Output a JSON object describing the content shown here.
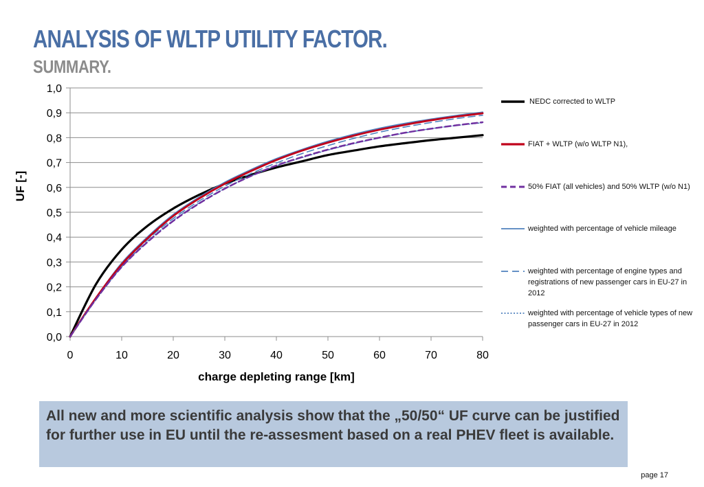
{
  "header": {
    "title": "ANALYSIS OF WLTP UTILITY FACTOR.",
    "subtitle": "SUMMARY."
  },
  "chart_data": {
    "type": "line",
    "xlabel": "charge depleting range [km]",
    "ylabel": "UF [-]",
    "xlim": [
      0,
      80
    ],
    "ylim": [
      0,
      1.0
    ],
    "x_ticks": [
      "0",
      "10",
      "20",
      "30",
      "40",
      "50",
      "60",
      "70",
      "80"
    ],
    "y_ticks": [
      "0,0",
      "0,1",
      "0,2",
      "0,3",
      "0,4",
      "0,5",
      "0,6",
      "0,7",
      "0,8",
      "0,9",
      "1,0"
    ],
    "grid": "horizontal",
    "legend_position": "right",
    "x": [
      0,
      5,
      10,
      15,
      20,
      25,
      30,
      35,
      40,
      45,
      50,
      55,
      60,
      65,
      70,
      75,
      80
    ],
    "series": [
      {
        "name": "NEDC corrected to WLTP",
        "color": "#000000",
        "style": "solid",
        "values": [
          0,
          0.21,
          0.35,
          0.445,
          0.515,
          0.57,
          0.615,
          0.65,
          0.68,
          0.705,
          0.73,
          0.748,
          0.765,
          0.778,
          0.79,
          0.8,
          0.81
        ]
      },
      {
        "name": "FIAT + WLTP (w/o WLTP N1),",
        "color": "#c0001a",
        "style": "solid",
        "values": [
          0,
          0.155,
          0.29,
          0.395,
          0.485,
          0.555,
          0.615,
          0.665,
          0.71,
          0.748,
          0.78,
          0.808,
          0.832,
          0.852,
          0.87,
          0.885,
          0.898
        ]
      },
      {
        "name": "50% FIAT (all vehicles) and  50% WLTP (w/o N1)",
        "color": "#7030a0",
        "style": "dash",
        "values": [
          0,
          0.15,
          0.28,
          0.38,
          0.465,
          0.535,
          0.595,
          0.645,
          0.688,
          0.722,
          0.752,
          0.778,
          0.8,
          0.82,
          0.836,
          0.85,
          0.862
        ]
      },
      {
        "name": "weighted with percentage of vehicle mileage",
        "color": "#4f81bd",
        "style": "solid",
        "values": [
          0,
          0.155,
          0.295,
          0.4,
          0.49,
          0.56,
          0.62,
          0.67,
          0.715,
          0.752,
          0.785,
          0.813,
          0.837,
          0.857,
          0.874,
          0.889,
          0.902
        ]
      },
      {
        "name": "weighted with percentage of engine types and registrations of new passenger cars in EU-27 in 2012",
        "color": "#4f81bd",
        "style": "longdash",
        "values": [
          0,
          0.15,
          0.285,
          0.39,
          0.475,
          0.545,
          0.605,
          0.655,
          0.698,
          0.736,
          0.768,
          0.797,
          0.822,
          0.843,
          0.861,
          0.877,
          0.89
        ]
      },
      {
        "name": "weighted with percentage of vehicle types of new passenger cars in EU-27 in 2012",
        "color": "#4f81bd",
        "style": "dot",
        "values": [
          0,
          0.148,
          0.28,
          0.383,
          0.467,
          0.537,
          0.595,
          0.645,
          0.687,
          0.72,
          0.75,
          0.776,
          0.799,
          0.819,
          0.836,
          0.849,
          0.86
        ]
      }
    ]
  },
  "summary": {
    "text": "All new and more scientific analysis show that the „50/50“ UF curve can be justified for further use in EU until the re-assesment based on a real PHEV fleet is available."
  },
  "footer": {
    "page": "page 17"
  }
}
